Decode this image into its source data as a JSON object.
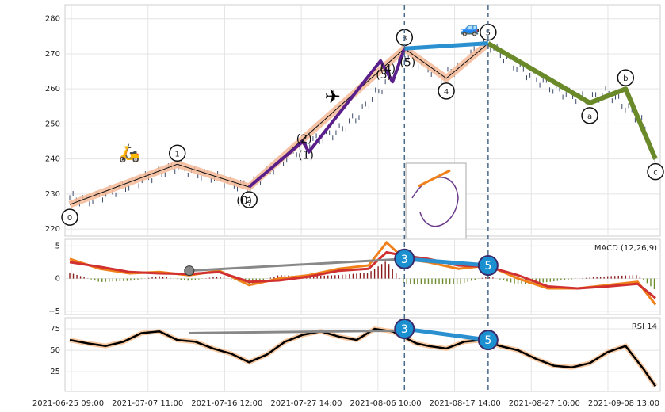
{
  "chart_data": {
    "type": "line",
    "x_labels": [
      "2021-06-25 09:00",
      "2021-07-07 11:00",
      "2021-07-16 12:00",
      "2021-07-27 14:00",
      "2021-08-06 10:00",
      "2021-08-17 14:00",
      "2021-08-27 10:00",
      "2021-09-08 13:00"
    ],
    "price": {
      "ylim": [
        218,
        284
      ],
      "yticks": [
        "220",
        "230",
        "240",
        "250",
        "260",
        "270",
        "280"
      ],
      "points": [
        [
          0,
          229
        ],
        [
          3,
          228
        ],
        [
          6,
          230
        ],
        [
          9,
          232
        ],
        [
          12,
          234
        ],
        [
          15,
          236
        ],
        [
          18,
          238
        ],
        [
          21,
          236
        ],
        [
          24,
          235
        ],
        [
          27,
          233
        ],
        [
          30,
          232
        ],
        [
          33,
          236
        ],
        [
          36,
          240
        ],
        [
          39,
          244
        ],
        [
          42,
          246
        ],
        [
          45,
          248
        ],
        [
          48,
          252
        ],
        [
          51,
          258
        ],
        [
          54,
          264
        ],
        [
          56,
          270
        ],
        [
          58,
          268
        ],
        [
          60,
          266
        ],
        [
          62,
          263
        ],
        [
          64,
          265
        ],
        [
          66,
          268
        ],
        [
          68,
          271
        ],
        [
          70,
          273
        ],
        [
          72,
          270
        ],
        [
          75,
          266
        ],
        [
          78,
          263
        ],
        [
          81,
          260
        ],
        [
          84,
          258
        ],
        [
          87,
          257
        ],
        [
          90,
          259
        ],
        [
          93,
          255
        ],
        [
          96,
          250
        ],
        [
          98,
          238
        ]
      ],
      "wave_points": [
        {
          "x": 0,
          "y": 227,
          "label": "0",
          "circled": true
        },
        {
          "x": 18,
          "y": 238.5,
          "label": "1",
          "circled": true
        },
        {
          "x": 30,
          "y": 232,
          "label": "2",
          "circled": true
        },
        {
          "x": 56,
          "y": 271.5,
          "label": "3",
          "circled": true
        },
        {
          "x": 63,
          "y": 263,
          "label": "4",
          "circled": true
        },
        {
          "x": 70,
          "y": 273,
          "label": "5",
          "circled": true
        },
        {
          "x": 87,
          "y": 256,
          "label": "a",
          "circled": true
        },
        {
          "x": 93,
          "y": 260,
          "label": "b",
          "circled": true
        },
        {
          "x": 98,
          "y": 240,
          "label": "c",
          "circled": true
        }
      ],
      "sub_wave_points": [
        {
          "x": 30,
          "y": 232,
          "label": "(0)"
        },
        {
          "x": 39,
          "y": 245,
          "label": "(1)"
        },
        {
          "x": 40,
          "y": 242,
          "label": "(2)"
        },
        {
          "x": 52,
          "y": 268,
          "label": "(3)"
        },
        {
          "x": 54,
          "y": 262,
          "label": "(4)"
        },
        {
          "x": 56,
          "y": 271.5,
          "label": "(5)"
        }
      ],
      "icons": [
        "scooter-icon",
        "airplane-icon",
        "car-icon"
      ]
    },
    "macd": {
      "label": "MACD (12,26,9)",
      "ylim": [
        -5.5,
        6
      ],
      "yticks": [
        "5",
        "0",
        "−5"
      ],
      "line": [
        [
          0,
          3
        ],
        [
          5,
          1.5
        ],
        [
          10,
          0.8
        ],
        [
          15,
          1
        ],
        [
          20,
          0.5
        ],
        [
          25,
          1.2
        ],
        [
          30,
          -1
        ],
        [
          35,
          0
        ],
        [
          40,
          0.5
        ],
        [
          45,
          1.5
        ],
        [
          50,
          2
        ],
        [
          53,
          5.5
        ],
        [
          56,
          3
        ],
        [
          60,
          2.5
        ],
        [
          65,
          1.5
        ],
        [
          70,
          2
        ],
        [
          75,
          0
        ],
        [
          80,
          -1.5
        ],
        [
          85,
          -1.5
        ],
        [
          90,
          -1
        ],
        [
          95,
          -0.5
        ],
        [
          98,
          -4
        ]
      ],
      "signal": [
        [
          0,
          2.5
        ],
        [
          5,
          1.8
        ],
        [
          10,
          1
        ],
        [
          15,
          0.8
        ],
        [
          20,
          0.7
        ],
        [
          25,
          1
        ],
        [
          30,
          -0.5
        ],
        [
          35,
          -0.3
        ],
        [
          40,
          0.3
        ],
        [
          45,
          1.2
        ],
        [
          50,
          1.5
        ],
        [
          53,
          4
        ],
        [
          56,
          3.5
        ],
        [
          60,
          3
        ],
        [
          65,
          2
        ],
        [
          70,
          1.8
        ],
        [
          75,
          0.5
        ],
        [
          80,
          -1.2
        ],
        [
          85,
          -1.5
        ],
        [
          90,
          -1.2
        ],
        [
          95,
          -0.8
        ],
        [
          98,
          -3
        ]
      ],
      "divergence_marker": "3 → 5"
    },
    "rsi": {
      "label": "RSI 14",
      "ylim": [
        2,
        88
      ],
      "yticks": [
        "75",
        "50",
        "25"
      ],
      "line": [
        [
          0,
          62
        ],
        [
          3,
          58
        ],
        [
          6,
          55
        ],
        [
          9,
          60
        ],
        [
          12,
          70
        ],
        [
          15,
          72
        ],
        [
          18,
          62
        ],
        [
          21,
          60
        ],
        [
          24,
          52
        ],
        [
          27,
          46
        ],
        [
          30,
          36
        ],
        [
          33,
          45
        ],
        [
          36,
          60
        ],
        [
          39,
          68
        ],
        [
          42,
          72
        ],
        [
          45,
          66
        ],
        [
          48,
          62
        ],
        [
          51,
          75
        ],
        [
          54,
          72
        ],
        [
          56,
          65
        ],
        [
          58,
          58
        ],
        [
          60,
          55
        ],
        [
          63,
          52
        ],
        [
          66,
          60
        ],
        [
          69,
          62
        ],
        [
          72,
          55
        ],
        [
          75,
          50
        ],
        [
          78,
          40
        ],
        [
          81,
          32
        ],
        [
          84,
          30
        ],
        [
          87,
          35
        ],
        [
          90,
          48
        ],
        [
          93,
          55
        ],
        [
          96,
          28
        ],
        [
          98,
          8
        ]
      ]
    },
    "markers": {
      "first": "3",
      "second": "5"
    },
    "colors": {
      "wave_main": "#f4b896",
      "wave_impulse": "#5a1f8a",
      "wave_correction": "#6a8a2a",
      "divergence_line": "#2a90d0",
      "marker_fill": "#1a90d0",
      "macd_line": "#f0801a",
      "signal_line": "#d03030",
      "rsi_line": "#000000",
      "rsi_glow": "#f7c9a2"
    }
  }
}
